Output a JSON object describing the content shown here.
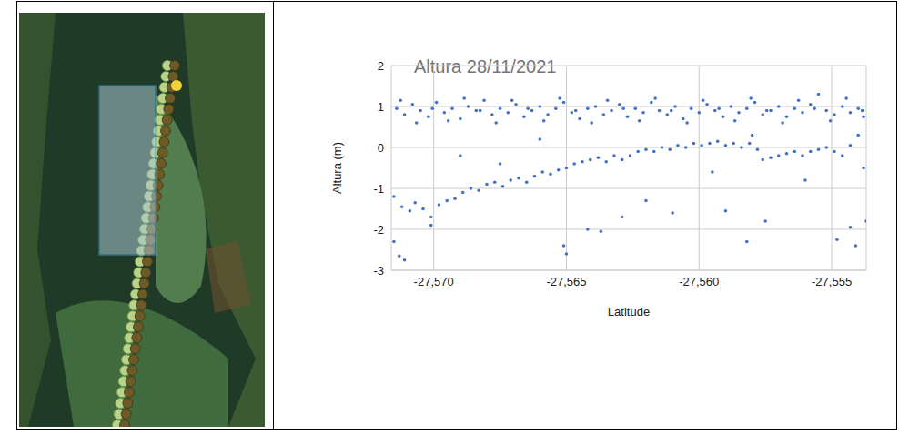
{
  "chart_data": {
    "type": "scatter",
    "title": "Altura 28/11/2021",
    "x_label": "Latitude",
    "y_label": "Altura (m)",
    "color": "#4472c4",
    "marker": "circle",
    "grid": true,
    "xlim": [
      -27.5716,
      -27.5537
    ],
    "ylim": [
      -3,
      2
    ],
    "xticks": [
      {
        "value": -27.57,
        "label": "-27,570"
      },
      {
        "value": -27.565,
        "label": "-27,565"
      },
      {
        "value": -27.56,
        "label": "-27,560"
      },
      {
        "value": -27.555,
        "label": "-27,555"
      }
    ],
    "yticks": [
      -3,
      -2,
      -1,
      0,
      1,
      2
    ],
    "x": [
      -27.5714,
      -27.5711,
      -27.5708,
      -27.5705,
      -27.5702,
      -27.5699,
      -27.5696,
      -27.5693,
      -27.569,
      -27.5687,
      -27.5684,
      -27.5681,
      -27.5678,
      -27.5675,
      -27.5672,
      -27.5669,
      -27.5666,
      -27.5663,
      -27.566,
      -27.5657,
      -27.5654,
      -27.5651,
      -27.5648,
      -27.5645,
      -27.5642,
      -27.5639,
      -27.5636,
      -27.5633,
      -27.563,
      -27.5627,
      -27.5624,
      -27.5621,
      -27.5618,
      -27.5615,
      -27.5612,
      -27.5609,
      -27.5606,
      -27.5603,
      -27.56,
      -27.5597,
      -27.5594,
      -27.5591,
      -27.5588,
      -27.5585,
      -27.5582,
      -27.5579,
      -27.5576,
      -27.5573,
      -27.557,
      -27.5567,
      -27.5564,
      -27.5561,
      -27.5558,
      -27.5555,
      -27.5552,
      -27.5549,
      -27.5546,
      -27.5543,
      -27.554,
      -27.5538,
      -27.57125,
      -27.57065,
      -27.57005,
      -27.56945,
      -27.56885,
      -27.56825,
      -27.56765,
      -27.56705,
      -27.56645,
      -27.56585,
      -27.56525,
      -27.56465,
      -27.56405,
      -27.56345,
      -27.56285,
      -27.56225,
      -27.56165,
      -27.56105,
      -27.56045,
      -27.55985,
      -27.55925,
      -27.55865,
      -27.55805,
      -27.55745,
      -27.55685,
      -27.55625,
      -27.55565,
      -27.55505,
      -27.55445,
      -27.55385,
      -27.5715,
      -27.5712,
      -27.5709,
      -27.5707,
      -27.5704,
      -27.5701,
      -27.5698,
      -27.5695,
      -27.5692,
      -27.5689,
      -27.5686,
      -27.5683,
      -27.568,
      -27.5677,
      -27.5674,
      -27.5671,
      -27.5668,
      -27.5665,
      -27.5662,
      -27.5659,
      -27.5656,
      -27.5653,
      -27.565,
      -27.5647,
      -27.5644,
      -27.5641,
      -27.5638,
      -27.5635,
      -27.5632,
      -27.5629,
      -27.5626,
      -27.5623,
      -27.562,
      -27.5617,
      -27.5614,
      -27.5611,
      -27.5608,
      -27.5605,
      -27.5602,
      -27.5599,
      -27.5596,
      -27.5593,
      -27.559,
      -27.5587,
      -27.5584,
      -27.5581,
      -27.5578,
      -27.5576,
      -27.5573,
      -27.557,
      -27.5567,
      -27.5564,
      -27.5561,
      -27.5558,
      -27.5555,
      -27.5552,
      -27.5549,
      -27.5546,
      -27.5543,
      -27.554,
      -27.5538,
      -27.5715,
      -27.5713,
      -27.5711,
      -27.5701,
      -27.569,
      -27.5675,
      -27.565,
      -27.5651,
      -27.5642,
      -27.5637,
      -27.5629,
      -27.561,
      -27.559,
      -27.5582,
      -27.5575,
      -27.556,
      -27.5548,
      -27.5543,
      -27.5541,
      -27.5537,
      -27.5595,
      -27.562,
      -27.566,
      -27.558
    ],
    "values": [
      0.95,
      0.8,
      1.05,
      0.9,
      0.75,
      1.1,
      0.85,
      0.95,
      0.7,
      1.0,
      0.9,
      1.15,
      0.8,
      0.95,
      0.85,
      1.05,
      0.75,
      0.9,
      1.0,
      0.8,
      0.95,
      1.1,
      0.85,
      0.7,
      0.95,
      1.0,
      0.8,
      0.9,
      1.05,
      0.75,
      0.95,
      0.85,
      1.1,
      0.9,
      0.8,
      1.0,
      0.7,
      0.95,
      0.85,
      1.05,
      0.9,
      0.75,
      1.0,
      0.85,
      0.95,
      1.1,
      0.8,
      0.9,
      1.0,
      0.75,
      0.95,
      0.85,
      1.05,
      1.3,
      0.9,
      0.8,
      1.0,
      0.85,
      0.95,
      0.75,
      1.15,
      0.6,
      0.95,
      0.65,
      1.2,
      0.9,
      0.6,
      1.15,
      0.95,
      0.65,
      1.2,
      0.9,
      0.6,
      1.15,
      0.95,
      0.65,
      1.2,
      0.9,
      0.6,
      1.15,
      0.95,
      0.65,
      1.2,
      0.9,
      0.6,
      1.15,
      0.95,
      0.65,
      1.2,
      0.9,
      -1.2,
      -1.45,
      -1.55,
      -1.35,
      -1.5,
      -1.7,
      -1.4,
      -1.3,
      -1.25,
      -1.1,
      -1.0,
      -1.05,
      -0.9,
      -0.85,
      -0.95,
      -0.8,
      -0.75,
      -0.85,
      -0.7,
      -0.6,
      -0.65,
      -0.55,
      -0.5,
      -0.4,
      -0.35,
      -0.3,
      -0.25,
      -0.35,
      -0.2,
      -0.3,
      -0.2,
      -0.1,
      -0.05,
      -0.1,
      0,
      -0.05,
      0.05,
      0,
      0.1,
      0.05,
      0.1,
      0.15,
      0.05,
      0.1,
      0,
      0.1,
      -0.05,
      -0.3,
      -0.25,
      -0.2,
      -0.15,
      -0.1,
      -0.2,
      -0.1,
      -0.05,
      0,
      -0.1,
      -0.2,
      0.05,
      0.3,
      -0.5,
      -2.3,
      -2.65,
      -2.75,
      -1.9,
      -0.2,
      -0.4,
      -2.6,
      -2.4,
      -2.0,
      -2.05,
      -1.7,
      -1.6,
      -1.55,
      -2.3,
      -1.8,
      -0.8,
      -2.25,
      -1.95,
      -2.4,
      -1.8,
      -0.6,
      -1.3,
      0.2,
      0.3
    ]
  }
}
